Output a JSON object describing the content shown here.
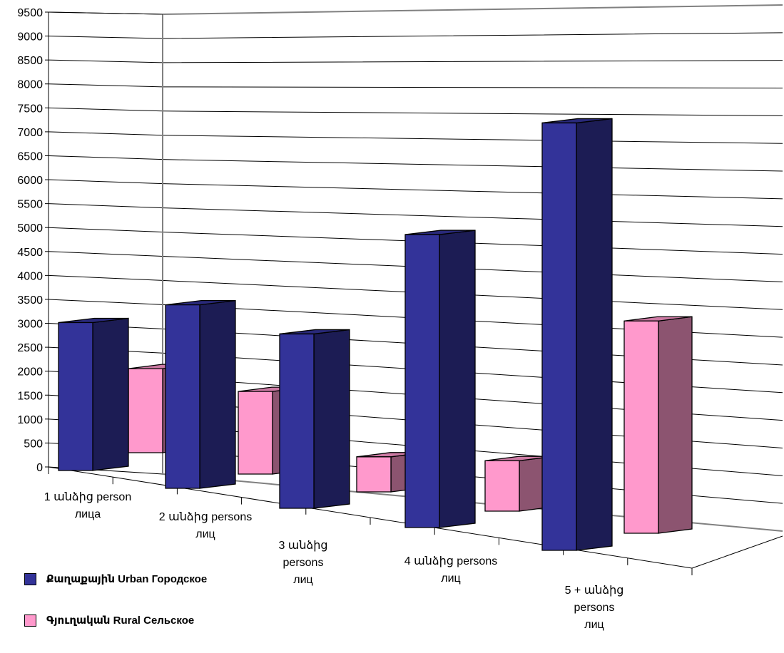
{
  "chart_data": {
    "type": "bar",
    "categories": [
      [
        "1 անձից person",
        "лица"
      ],
      [
        "2 անձից persons",
        "лиц"
      ],
      [
        "3 անձից",
        "persons",
        "лиц"
      ],
      [
        "4 անձից persons",
        "лиц"
      ],
      [
        "5 + անձից",
        "persons",
        "лиц"
      ]
    ],
    "series": [
      {
        "name": "Քաղաքային Urban  Городское",
        "values": [
          3080,
          3820,
          3630,
          6100,
          8900
        ],
        "color": "#333399"
      },
      {
        "name": "Գյուղական Rural  Сельское",
        "values": [
          1750,
          1720,
          730,
          1050,
          4420
        ],
        "color": "#FF99CC"
      }
    ],
    "ylim": [
      0,
      9500
    ],
    "yticks": [
      "0",
      "500",
      "1000",
      "1500",
      "2000",
      "2500",
      "3000",
      "3500",
      "4000",
      "4500",
      "5000",
      "5500",
      "6000",
      "6500",
      "7000",
      "7500",
      "8000",
      "8500",
      "9000",
      "9500"
    ],
    "grid": true,
    "legend_position": "bottom-left"
  }
}
